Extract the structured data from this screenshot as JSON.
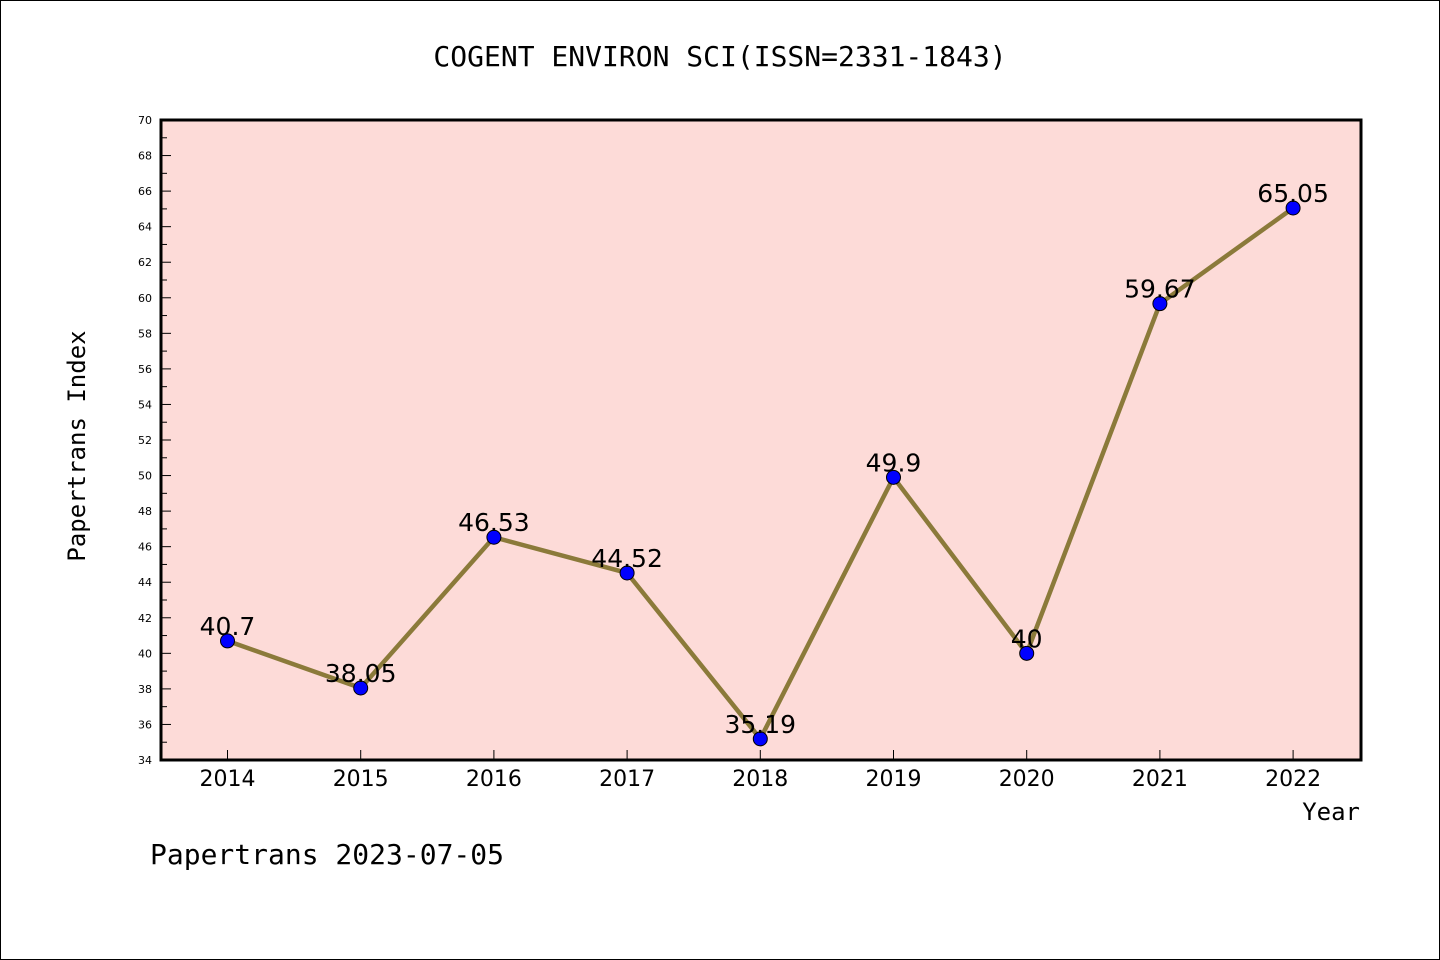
{
  "chart_data": {
    "type": "line",
    "title": "COGENT ENVIRON SCI(ISSN=2331-1843)",
    "xlabel": "Year",
    "ylabel": "Papertrans Index",
    "categories": [
      "2014",
      "2015",
      "2016",
      "2017",
      "2018",
      "2019",
      "2020",
      "2021",
      "2022"
    ],
    "values": [
      40.7,
      38.05,
      46.53,
      44.52,
      35.19,
      49.9,
      40,
      59.67,
      65.05
    ],
    "data_labels": [
      "40.7",
      "38.05",
      "46.53",
      "44.52",
      "35.19",
      "49.9",
      "40",
      "59.67",
      "65.05"
    ],
    "yticks": [
      34,
      36,
      38,
      40,
      42,
      44,
      46,
      48,
      50,
      52,
      54,
      56,
      58,
      60,
      62,
      64,
      66,
      68,
      70
    ],
    "ylim": [
      34,
      70
    ],
    "grid": false,
    "colors": {
      "plot_background": "#fddbd8",
      "line": "#8b7a3a",
      "marker": "#0000ff"
    }
  },
  "footer": {
    "text": "Papertrans 2023-07-05"
  }
}
